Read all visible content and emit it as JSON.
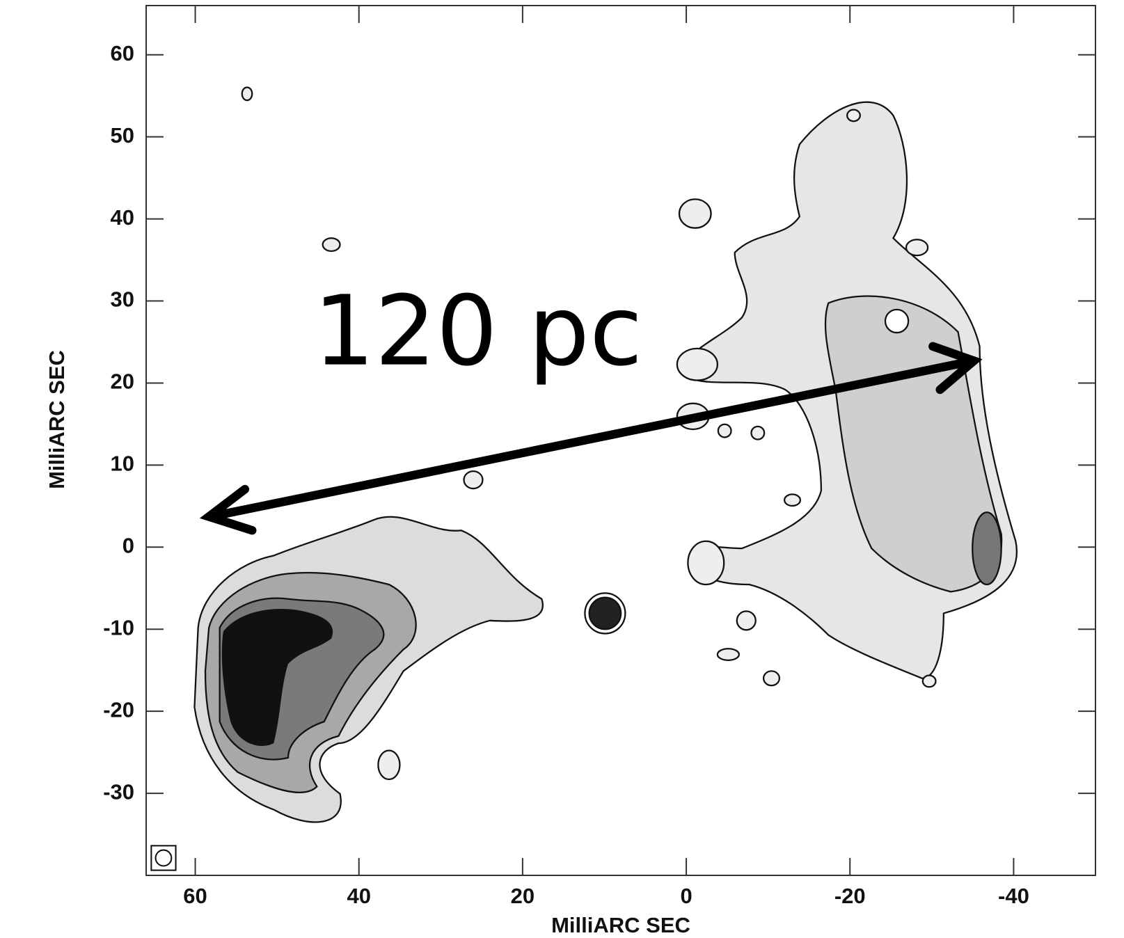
{
  "chart_data": {
    "type": "image",
    "xlabel": "MilliARC SEC",
    "ylabel": "MilliARC SEC",
    "xlim": [
      66,
      -50
    ],
    "ylim": [
      -40,
      66
    ],
    "xticks": [
      60,
      40,
      20,
      0,
      -20,
      -40
    ],
    "yticks": [
      60,
      50,
      40,
      30,
      20,
      10,
      0,
      -10,
      -20,
      -30
    ],
    "annotation": "120 pc"
  }
}
